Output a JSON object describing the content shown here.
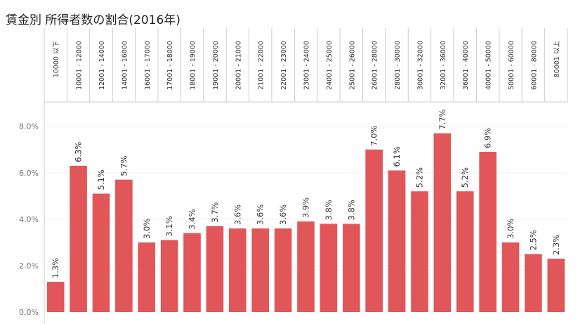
{
  "chart_data": {
    "type": "bar",
    "title": "賃金別 所得者数の割合(2016年)",
    "categories": [
      "10000 以下",
      "10001 - 12000",
      "12001 - 14000",
      "14001 - 16000",
      "16001 - 17000",
      "17001 - 18000",
      "18001 - 19000",
      "19001 - 20000",
      "20001 - 21000",
      "21001 - 22000",
      "22001 - 23000",
      "23001 - 24000",
      "24001 - 25000",
      "25001 - 26000",
      "26001 - 28000",
      "28001 - 30000",
      "30001 - 32000",
      "32001 - 36000",
      "36001 - 40000",
      "40001 - 50000",
      "50001 - 60000",
      "60001 - 80000",
      "80001 以上"
    ],
    "values": [
      1.3,
      6.3,
      5.1,
      5.7,
      3.0,
      3.1,
      3.4,
      3.7,
      3.6,
      3.6,
      3.6,
      3.9,
      3.8,
      3.8,
      7.0,
      6.1,
      5.2,
      7.7,
      5.2,
      6.9,
      3.0,
      2.5,
      2.3
    ],
    "value_labels": [
      "1.3%",
      "6.3%",
      "5.1%",
      "5.7%",
      "3.0%",
      "3.1%",
      "3.4%",
      "3.7%",
      "3.6%",
      "3.6%",
      "3.6%",
      "3.9%",
      "3.8%",
      "3.8%",
      "7.0%",
      "6.1%",
      "5.2%",
      "7.7%",
      "5.2%",
      "6.9%",
      "3.0%",
      "2.5%",
      "2.3%"
    ],
    "color": "#e15759",
    "ylim": [
      0,
      9.05
    ],
    "yticks": [
      {
        "value": 0,
        "label": "0.0%"
      },
      {
        "value": 2,
        "label": "2.0%"
      },
      {
        "value": 4,
        "label": "4.0%"
      },
      {
        "value": 6,
        "label": "6.0%"
      },
      {
        "value": 8,
        "label": "8.0%"
      }
    ],
    "grid": true
  }
}
